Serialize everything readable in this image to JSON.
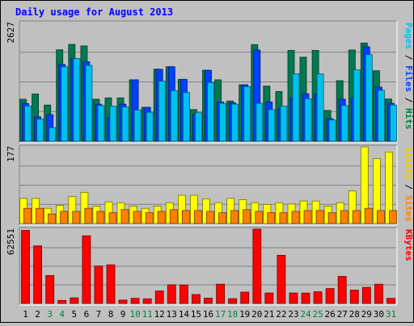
{
  "chart_data": {
    "type": "bar",
    "title": "Daily usage for August 2013",
    "categories": [
      "1",
      "2",
      "3",
      "4",
      "5",
      "6",
      "7",
      "8",
      "9",
      "10",
      "11",
      "12",
      "13",
      "14",
      "15",
      "16",
      "17",
      "18",
      "19",
      "20",
      "21",
      "22",
      "23",
      "24",
      "25",
      "26",
      "27",
      "28",
      "29",
      "30",
      "31"
    ],
    "weekend_days": [
      "3",
      "4",
      "10",
      "11",
      "17",
      "18",
      "24",
      "25",
      "31"
    ],
    "panels": [
      {
        "name": "pages-files-hits",
        "ymax_label": "2627",
        "ymax": 2627,
        "side_label_parts": [
          {
            "text": "Pages",
            "color": "#00c0f0"
          },
          {
            "text": " / ",
            "color": "#000000"
          },
          {
            "text": "Files",
            "color": "#0040ff"
          },
          {
            "text": " / ",
            "color": "#000000"
          },
          {
            "text": "Hits",
            "color": "#008040"
          }
        ],
        "series": [
          {
            "name": "Hits",
            "color": "#007850",
            "values": [
              930,
              1045,
              800,
              2025,
              2145,
              2110,
              930,
              960,
              960,
              1360,
              750,
              1595,
              1650,
              1370,
              700,
              1570,
              1360,
              890,
              1250,
              2140,
              1220,
              1100,
              2010,
              1860,
              2010,
              680,
              1340,
              2020,
              2175,
              1560,
              935
            ]
          },
          {
            "name": "Files",
            "color": "#0040ff",
            "values": [
              835,
              540,
              590,
              1700,
              1830,
              1760,
              820,
              520,
              820,
              1360,
              750,
              1590,
              1650,
              1370,
              600,
              1570,
              870,
              850,
              1250,
              2020,
              870,
              720,
              950,
              1050,
              1050,
              500,
              930,
              950,
              2090,
              1200,
              840
            ]
          },
          {
            "name": "Pages",
            "color": "#00c0f0",
            "values": [
              780,
              490,
              300,
              1650,
              1830,
              1680,
              790,
              780,
              760,
              690,
              640,
              1330,
              1120,
              1080,
              630,
              1300,
              840,
              820,
              1210,
              840,
              700,
              780,
              1490,
              940,
              1490,
              470,
              790,
              1580,
              1920,
              1130,
              800
            ]
          }
        ]
      },
      {
        "name": "visits-sites",
        "ymax_label": "177",
        "ymax": 177,
        "side_label_parts": [
          {
            "text": "Visits",
            "color": "#f0d000"
          },
          {
            "text": " / ",
            "color": "#000000"
          },
          {
            "text": "Sites",
            "color": "#ff8000"
          }
        ],
        "series": [
          {
            "name": "Visits",
            "color": "#ffff00",
            "values": [
              58,
              58,
              35,
              42,
              62,
              72,
              40,
              50,
              48,
              40,
              35,
              40,
              48,
              65,
              65,
              57,
              48,
              58,
              55,
              48,
              44,
              48,
              45,
              52,
              52,
              40,
              48,
              75,
              177,
              150,
              165
            ]
          },
          {
            "name": "Sites",
            "color": "#ff8000",
            "values": [
              35,
              35,
              22,
              28,
              28,
              35,
              28,
              25,
              32,
              28,
              25,
              28,
              32,
              30,
              30,
              28,
              25,
              30,
              32,
              28,
              25,
              25,
              28,
              30,
              30,
              25,
              30,
              30,
              35,
              30,
              30
            ]
          }
        ]
      },
      {
        "name": "kbytes",
        "ymax_label": "62551",
        "ymax": 62551,
        "side_label_parts": [
          {
            "text": "KBytes",
            "color": "#ff0000"
          }
        ],
        "series": [
          {
            "name": "KBytes",
            "color": "#ff0000",
            "values": [
              61500,
              48500,
              23500,
              2500,
              4700,
              57000,
              31500,
              32500,
              2800,
              4300,
              3900,
              10500,
              15700,
              15500,
              7500,
              4400,
              16200,
              4000,
              9500,
              62551,
              8800,
              40500,
              8800,
              8700,
              9800,
              12500,
              22800,
              11200,
              13500,
              16200,
              4300
            ]
          }
        ]
      }
    ]
  }
}
